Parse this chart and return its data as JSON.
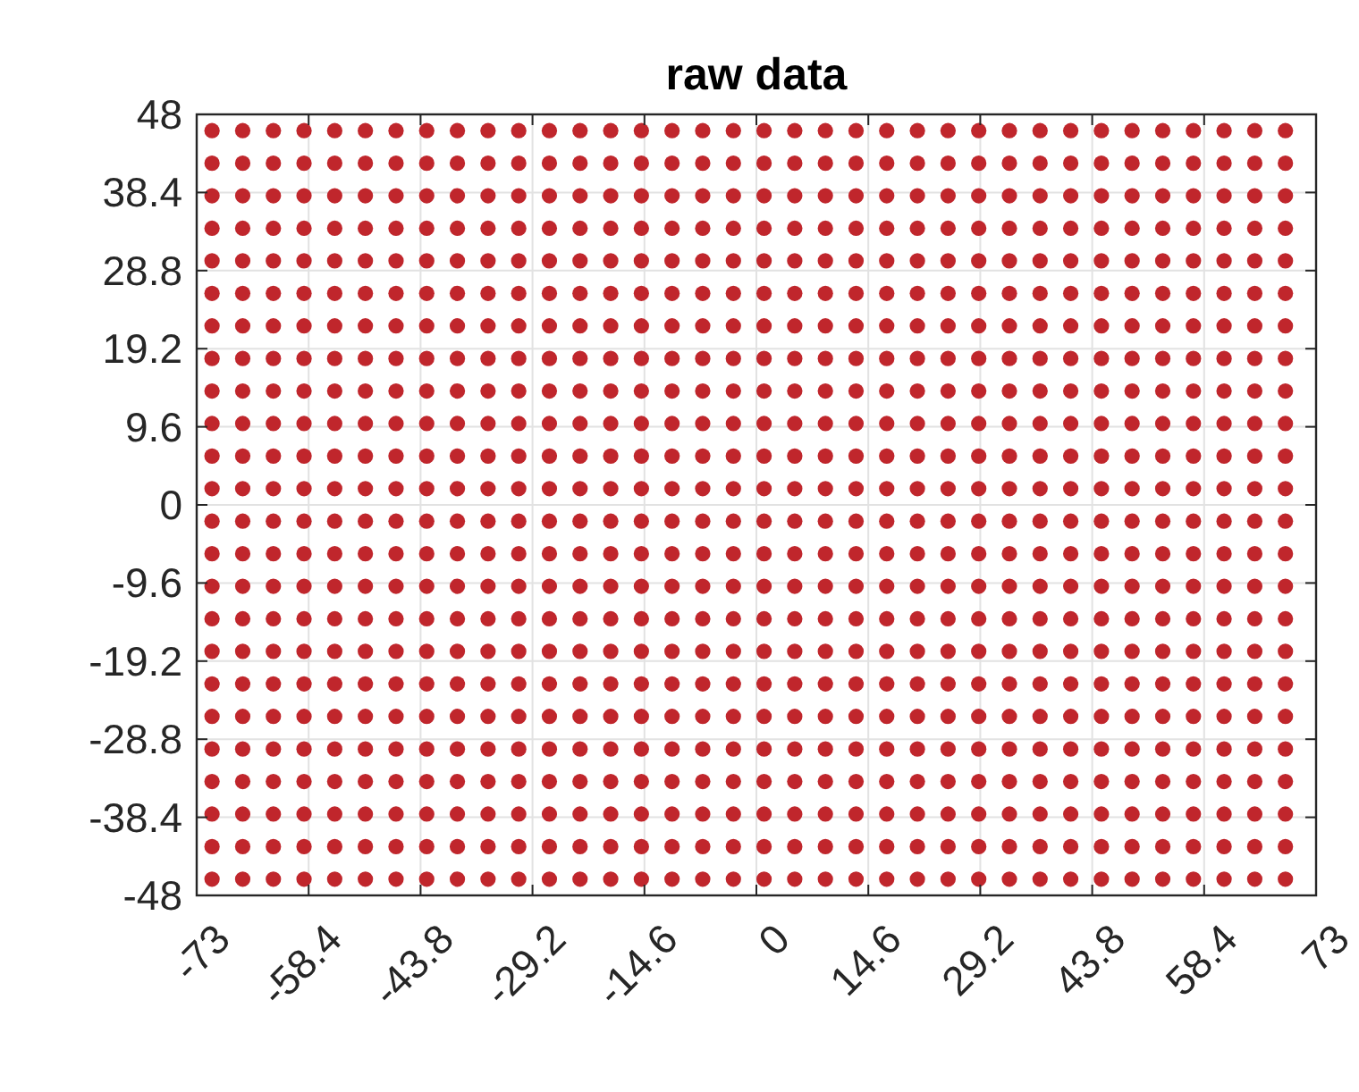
{
  "chart_data": {
    "type": "scatter",
    "title": "raw data",
    "marker": "circle",
    "grid": true,
    "xlim": [
      -73,
      73
    ],
    "xticks": [
      -73,
      -58.4,
      -43.8,
      -29.2,
      -14.6,
      0,
      14.6,
      29.2,
      43.8,
      58.4,
      73
    ],
    "ylim": [
      -48,
      48
    ],
    "yticks": [
      -48,
      -38.4,
      -28.8,
      -19.2,
      -9.6,
      0,
      9.6,
      19.2,
      28.8,
      38.4,
      48
    ],
    "x": [
      -71,
      -67,
      -63,
      -59,
      -55,
      -51,
      -47,
      -43,
      -39,
      -35,
      -31,
      -27,
      -23,
      -19,
      -15,
      -11,
      -7,
      -3,
      1,
      5,
      9,
      13,
      17,
      21,
      25,
      29,
      33,
      37,
      41,
      45,
      49,
      53,
      57,
      61,
      65,
      69
    ],
    "series": [
      {
        "color": "#c0262c",
        "values": [
          46,
          46,
          46,
          46,
          46,
          46,
          46,
          46,
          46,
          46,
          46,
          46,
          46,
          46,
          46,
          46,
          46,
          46,
          46,
          46,
          46,
          46,
          46,
          46,
          46,
          46,
          46,
          46,
          46,
          46,
          46,
          46,
          46,
          46,
          46,
          46
        ]
      },
      {
        "color": "#c0262c",
        "values": [
          42,
          42,
          42,
          42,
          42,
          42,
          42,
          42,
          42,
          42,
          42,
          42,
          42,
          42,
          42,
          42,
          42,
          42,
          42,
          42,
          42,
          42,
          42,
          42,
          42,
          42,
          42,
          42,
          42,
          42,
          42,
          42,
          42,
          42,
          42,
          42
        ]
      },
      {
        "color": "#c0262c",
        "values": [
          38,
          38,
          38,
          38,
          38,
          38,
          38,
          38,
          38,
          38,
          38,
          38,
          38,
          38,
          38,
          38,
          38,
          38,
          38,
          38,
          38,
          38,
          38,
          38,
          38,
          38,
          38,
          38,
          38,
          38,
          38,
          38,
          38,
          38,
          38,
          38
        ]
      },
      {
        "color": "#c0262c",
        "values": [
          34,
          34,
          34,
          34,
          34,
          34,
          34,
          34,
          34,
          34,
          34,
          34,
          34,
          34,
          34,
          34,
          34,
          34,
          34,
          34,
          34,
          34,
          34,
          34,
          34,
          34,
          34,
          34,
          34,
          34,
          34,
          34,
          34,
          34,
          34,
          34
        ]
      },
      {
        "color": "#c0262c",
        "values": [
          30,
          30,
          30,
          30,
          30,
          30,
          30,
          30,
          30,
          30,
          30,
          30,
          30,
          30,
          30,
          30,
          30,
          30,
          30,
          30,
          30,
          30,
          30,
          30,
          30,
          30,
          30,
          30,
          30,
          30,
          30,
          30,
          30,
          30,
          30,
          30
        ]
      },
      {
        "color": "#c0262c",
        "values": [
          26,
          26,
          26,
          26,
          26,
          26,
          26,
          26,
          26,
          26,
          26,
          26,
          26,
          26,
          26,
          26,
          26,
          26,
          26,
          26,
          26,
          26,
          26,
          26,
          26,
          26,
          26,
          26,
          26,
          26,
          26,
          26,
          26,
          26,
          26,
          26
        ]
      },
      {
        "color": "#c0262c",
        "values": [
          22,
          22,
          22,
          22,
          22,
          22,
          22,
          22,
          22,
          22,
          22,
          22,
          22,
          22,
          22,
          22,
          22,
          22,
          22,
          22,
          22,
          22,
          22,
          22,
          22,
          22,
          22,
          22,
          22,
          22,
          22,
          22,
          22,
          22,
          22,
          22
        ]
      },
      {
        "color": "#c0262c",
        "values": [
          18,
          18,
          18,
          18,
          18,
          18,
          18,
          18,
          18,
          18,
          18,
          18,
          18,
          18,
          18,
          18,
          18,
          18,
          18,
          18,
          18,
          18,
          18,
          18,
          18,
          18,
          18,
          18,
          18,
          18,
          18,
          18,
          18,
          18,
          18,
          18
        ]
      },
      {
        "color": "#c0262c",
        "values": [
          14,
          14,
          14,
          14,
          14,
          14,
          14,
          14,
          14,
          14,
          14,
          14,
          14,
          14,
          14,
          14,
          14,
          14,
          14,
          14,
          14,
          14,
          14,
          14,
          14,
          14,
          14,
          14,
          14,
          14,
          14,
          14,
          14,
          14,
          14,
          14
        ]
      },
      {
        "color": "#c0262c",
        "values": [
          10,
          10,
          10,
          10,
          10,
          10,
          10,
          10,
          10,
          10,
          10,
          10,
          10,
          10,
          10,
          10,
          10,
          10,
          10,
          10,
          10,
          10,
          10,
          10,
          10,
          10,
          10,
          10,
          10,
          10,
          10,
          10,
          10,
          10,
          10,
          10
        ]
      },
      {
        "color": "#c0262c",
        "values": [
          6,
          6,
          6,
          6,
          6,
          6,
          6,
          6,
          6,
          6,
          6,
          6,
          6,
          6,
          6,
          6,
          6,
          6,
          6,
          6,
          6,
          6,
          6,
          6,
          6,
          6,
          6,
          6,
          6,
          6,
          6,
          6,
          6,
          6,
          6,
          6
        ]
      },
      {
        "color": "#c0262c",
        "values": [
          2,
          2,
          2,
          2,
          2,
          2,
          2,
          2,
          2,
          2,
          2,
          2,
          2,
          2,
          2,
          2,
          2,
          2,
          2,
          2,
          2,
          2,
          2,
          2,
          2,
          2,
          2,
          2,
          2,
          2,
          2,
          2,
          2,
          2,
          2,
          2
        ]
      },
      {
        "color": "#c0262c",
        "values": [
          -2,
          -2,
          -2,
          -2,
          -2,
          -2,
          -2,
          -2,
          -2,
          -2,
          -2,
          -2,
          -2,
          -2,
          -2,
          -2,
          -2,
          -2,
          -2,
          -2,
          -2,
          -2,
          -2,
          -2,
          -2,
          -2,
          -2,
          -2,
          -2,
          -2,
          -2,
          -2,
          -2,
          -2,
          -2,
          -2
        ]
      },
      {
        "color": "#c0262c",
        "values": [
          -6,
          -6,
          -6,
          -6,
          -6,
          -6,
          -6,
          -6,
          -6,
          -6,
          -6,
          -6,
          -6,
          -6,
          -6,
          -6,
          -6,
          -6,
          -6,
          -6,
          -6,
          -6,
          -6,
          -6,
          -6,
          -6,
          -6,
          -6,
          -6,
          -6,
          -6,
          -6,
          -6,
          -6,
          -6,
          -6
        ]
      },
      {
        "color": "#c0262c",
        "values": [
          -10,
          -10,
          -10,
          -10,
          -10,
          -10,
          -10,
          -10,
          -10,
          -10,
          -10,
          -10,
          -10,
          -10,
          -10,
          -10,
          -10,
          -10,
          -10,
          -10,
          -10,
          -10,
          -10,
          -10,
          -10,
          -10,
          -10,
          -10,
          -10,
          -10,
          -10,
          -10,
          -10,
          -10,
          -10,
          -10
        ]
      },
      {
        "color": "#c0262c",
        "values": [
          -14,
          -14,
          -14,
          -14,
          -14,
          -14,
          -14,
          -14,
          -14,
          -14,
          -14,
          -14,
          -14,
          -14,
          -14,
          -14,
          -14,
          -14,
          -14,
          -14,
          -14,
          -14,
          -14,
          -14,
          -14,
          -14,
          -14,
          -14,
          -14,
          -14,
          -14,
          -14,
          -14,
          -14,
          -14,
          -14
        ]
      },
      {
        "color": "#c0262c",
        "values": [
          -18,
          -18,
          -18,
          -18,
          -18,
          -18,
          -18,
          -18,
          -18,
          -18,
          -18,
          -18,
          -18,
          -18,
          -18,
          -18,
          -18,
          -18,
          -18,
          -18,
          -18,
          -18,
          -18,
          -18,
          -18,
          -18,
          -18,
          -18,
          -18,
          -18,
          -18,
          -18,
          -18,
          -18,
          -18,
          -18
        ]
      },
      {
        "color": "#c0262c",
        "values": [
          -22,
          -22,
          -22,
          -22,
          -22,
          -22,
          -22,
          -22,
          -22,
          -22,
          -22,
          -22,
          -22,
          -22,
          -22,
          -22,
          -22,
          -22,
          -22,
          -22,
          -22,
          -22,
          -22,
          -22,
          -22,
          -22,
          -22,
          -22,
          -22,
          -22,
          -22,
          -22,
          -22,
          -22,
          -22,
          -22
        ]
      },
      {
        "color": "#c0262c",
        "values": [
          -26,
          -26,
          -26,
          -26,
          -26,
          -26,
          -26,
          -26,
          -26,
          -26,
          -26,
          -26,
          -26,
          -26,
          -26,
          -26,
          -26,
          -26,
          -26,
          -26,
          -26,
          -26,
          -26,
          -26,
          -26,
          -26,
          -26,
          -26,
          -26,
          -26,
          -26,
          -26,
          -26,
          -26,
          -26,
          -26
        ]
      },
      {
        "color": "#c0262c",
        "values": [
          -30,
          -30,
          -30,
          -30,
          -30,
          -30,
          -30,
          -30,
          -30,
          -30,
          -30,
          -30,
          -30,
          -30,
          -30,
          -30,
          -30,
          -30,
          -30,
          -30,
          -30,
          -30,
          -30,
          -30,
          -30,
          -30,
          -30,
          -30,
          -30,
          -30,
          -30,
          -30,
          -30,
          -30,
          -30,
          -30
        ]
      },
      {
        "color": "#c0262c",
        "values": [
          -34,
          -34,
          -34,
          -34,
          -34,
          -34,
          -34,
          -34,
          -34,
          -34,
          -34,
          -34,
          -34,
          -34,
          -34,
          -34,
          -34,
          -34,
          -34,
          -34,
          -34,
          -34,
          -34,
          -34,
          -34,
          -34,
          -34,
          -34,
          -34,
          -34,
          -34,
          -34,
          -34,
          -34,
          -34,
          -34
        ]
      },
      {
        "color": "#c0262c",
        "values": [
          -38,
          -38,
          -38,
          -38,
          -38,
          -38,
          -38,
          -38,
          -38,
          -38,
          -38,
          -38,
          -38,
          -38,
          -38,
          -38,
          -38,
          -38,
          -38,
          -38,
          -38,
          -38,
          -38,
          -38,
          -38,
          -38,
          -38,
          -38,
          -38,
          -38,
          -38,
          -38,
          -38,
          -38,
          -38,
          -38
        ]
      },
      {
        "color": "#c0262c",
        "values": [
          -42,
          -42,
          -42,
          -42,
          -42,
          -42,
          -42,
          -42,
          -42,
          -42,
          -42,
          -42,
          -42,
          -42,
          -42,
          -42,
          -42,
          -42,
          -42,
          -42,
          -42,
          -42,
          -42,
          -42,
          -42,
          -42,
          -42,
          -42,
          -42,
          -42,
          -42,
          -42,
          -42,
          -42,
          -42,
          -42
        ]
      },
      {
        "color": "#c0262c",
        "values": [
          -46,
          -46,
          -46,
          -46,
          -46,
          -46,
          -46,
          -46,
          -46,
          -46,
          -46,
          -46,
          -46,
          -46,
          -46,
          -46,
          -46,
          -46,
          -46,
          -46,
          -46,
          -46,
          -46,
          -46,
          -46,
          -46,
          -46,
          -46,
          -46,
          -46,
          -46,
          -46,
          -46,
          -46,
          -46,
          -46
        ]
      }
    ]
  }
}
